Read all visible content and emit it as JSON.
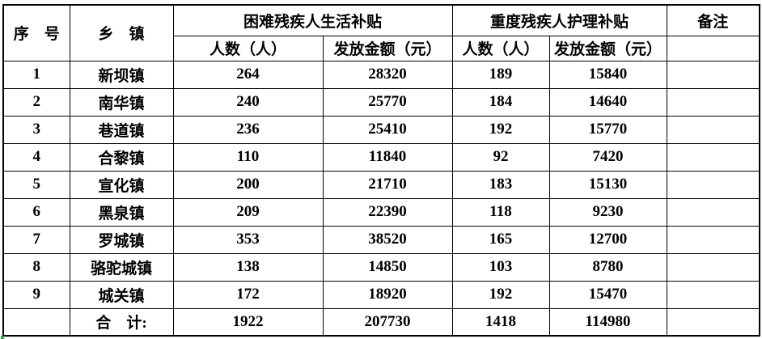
{
  "table": {
    "headers": {
      "serial": "序　号",
      "township": "乡　镇",
      "life_subsidy_group": "困难残疾人生活补贴",
      "care_subsidy_group": "重度残疾人护理补贴",
      "remarks": "备注",
      "count": "人数（人）",
      "amount": "发放金额（元）"
    },
    "rows": [
      {
        "no": "1",
        "township": "新坝镇",
        "count1": "264",
        "amount1": "28320",
        "count2": "189",
        "amount2": "15840",
        "remark": ""
      },
      {
        "no": "2",
        "township": "南华镇",
        "count1": "240",
        "amount1": "25770",
        "count2": "184",
        "amount2": "14640",
        "remark": ""
      },
      {
        "no": "3",
        "township": "巷道镇",
        "count1": "236",
        "amount1": "25410",
        "count2": "192",
        "amount2": "15770",
        "remark": ""
      },
      {
        "no": "4",
        "township": "合黎镇",
        "count1": "110",
        "amount1": "11840",
        "count2": "92",
        "amount2": "7420",
        "remark": ""
      },
      {
        "no": "5",
        "township": "宣化镇",
        "count1": "200",
        "amount1": "21710",
        "count2": "183",
        "amount2": "15130",
        "remark": ""
      },
      {
        "no": "6",
        "township": "黑泉镇",
        "count1": "209",
        "amount1": "22390",
        "count2": "118",
        "amount2": "9230",
        "remark": ""
      },
      {
        "no": "7",
        "township": "罗城镇",
        "count1": "353",
        "amount1": "38520",
        "count2": "165",
        "amount2": "12700",
        "remark": ""
      },
      {
        "no": "8",
        "township": "骆驼城镇",
        "count1": "138",
        "amount1": "14850",
        "count2": "103",
        "amount2": "8780",
        "remark": ""
      },
      {
        "no": "9",
        "township": "城关镇",
        "count1": "172",
        "amount1": "18920",
        "count2": "192",
        "amount2": "15470",
        "remark": ""
      }
    ],
    "total": {
      "no": "",
      "label": "合　计:",
      "count1": "1922",
      "amount1": "207730",
      "count2": "1418",
      "amount2": "114980",
      "remark": ""
    },
    "colors": {
      "border": "#000000",
      "text": "#000000",
      "background": "#ffffff",
      "error_indicator_green": "#18a52c"
    }
  }
}
